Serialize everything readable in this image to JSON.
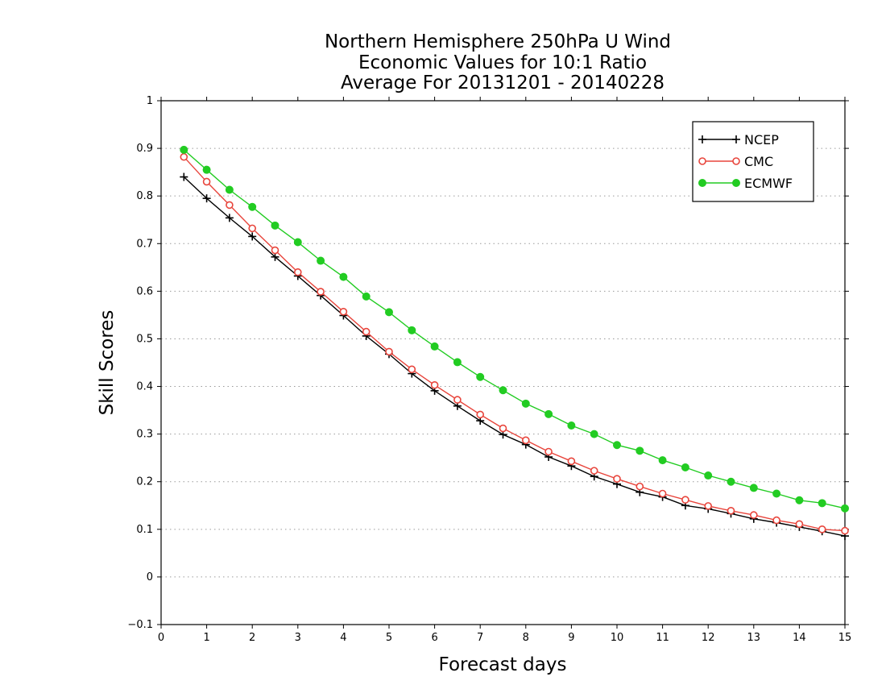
{
  "chart_data": {
    "type": "line",
    "title_lines": [
      "Northern Hemisphere 250hPa U Wind",
      "Economic Values for 10:1 Ratio",
      "Average For 20131201 - 20140228"
    ],
    "xlabel": "Forecast days",
    "ylabel": "Skill Scores",
    "xlim": [
      0,
      15
    ],
    "ylim": [
      -0.1,
      1
    ],
    "xticks": [
      0,
      1,
      2,
      3,
      4,
      5,
      6,
      7,
      8,
      9,
      10,
      11,
      12,
      13,
      14,
      15
    ],
    "xtick_labels": [
      "0",
      "1",
      "2",
      "3",
      "4",
      "5",
      "6",
      "7",
      "8",
      "9",
      "10",
      "11",
      "12",
      "13",
      "14",
      "15"
    ],
    "yticks": [
      -0.1,
      0,
      0.1,
      0.2,
      0.3,
      0.4,
      0.5,
      0.6,
      0.7,
      0.8,
      0.9,
      1
    ],
    "ytick_labels": [
      "−0.1",
      "0",
      "0.1",
      "0.2",
      "0.3",
      "0.4",
      "0.5",
      "0.6",
      "0.7",
      "0.8",
      "0.9",
      "1"
    ],
    "grid": true,
    "legend_position": "top-right",
    "x": [
      0.5,
      1,
      1.5,
      2,
      2.5,
      3,
      3.5,
      4,
      4.5,
      5,
      5.5,
      6,
      6.5,
      7,
      7.5,
      8,
      8.5,
      9,
      9.5,
      10,
      10.5,
      11,
      11.5,
      12,
      12.5,
      13,
      13.5,
      14,
      14.5,
      15
    ],
    "series": [
      {
        "name": "NCEP",
        "color": "#000000",
        "marker": "plus",
        "values": [
          0.84,
          0.795,
          0.754,
          0.715,
          0.672,
          0.632,
          0.591,
          0.549,
          0.506,
          0.468,
          0.427,
          0.391,
          0.359,
          0.328,
          0.299,
          0.278,
          0.252,
          0.233,
          0.211,
          0.195,
          0.178,
          0.168,
          0.15,
          0.143,
          0.133,
          0.122,
          0.114,
          0.105,
          0.096,
          0.086
        ]
      },
      {
        "name": "CMC",
        "color": "#e8453c",
        "marker": "open-circle",
        "values": [
          0.882,
          0.83,
          0.781,
          0.732,
          0.686,
          0.64,
          0.599,
          0.557,
          0.515,
          0.473,
          0.436,
          0.403,
          0.372,
          0.341,
          0.312,
          0.287,
          0.263,
          0.243,
          0.223,
          0.206,
          0.19,
          0.175,
          0.162,
          0.149,
          0.139,
          0.13,
          0.119,
          0.111,
          0.1,
          0.097
        ]
      },
      {
        "name": "ECMWF",
        "color": "#22cc22",
        "marker": "filled-circle",
        "values": [
          0.897,
          0.855,
          0.813,
          0.777,
          0.738,
          0.703,
          0.664,
          0.63,
          0.589,
          0.556,
          0.518,
          0.484,
          0.451,
          0.42,
          0.392,
          0.364,
          0.342,
          0.318,
          0.3,
          0.277,
          0.265,
          0.245,
          0.23,
          0.213,
          0.2,
          0.187,
          0.175,
          0.161,
          0.155,
          0.144
        ]
      }
    ]
  }
}
